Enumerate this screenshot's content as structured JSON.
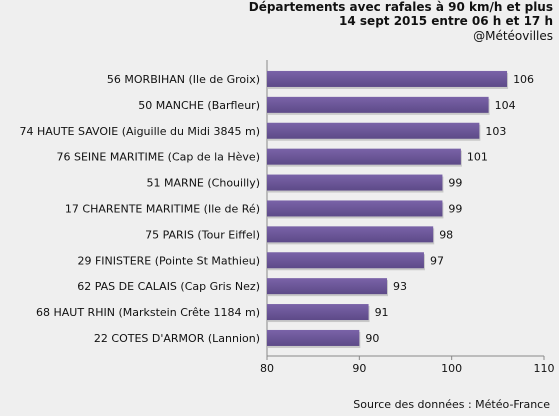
{
  "header": {
    "title_line1": "Départements avec rafales à 90 km/h et plus",
    "title_line2": "14 sept 2015 entre 06 h et 17 h",
    "handle": "@Météovilles"
  },
  "source": "Source des données : Météo-France",
  "colors": {
    "bar": "#7a63a8",
    "bar_dark": "#5d4a88",
    "background": "#efefef"
  },
  "chart_data": {
    "type": "bar",
    "orientation": "horizontal",
    "categories": [
      "56 MORBIHAN (Ile de Groix)",
      "50 MANCHE (Barfleur)",
      "74 HAUTE SAVOIE (Aiguille du Midi 3845 m)",
      "76 SEINE MARITIME (Cap de la Hève)",
      "51 MARNE (Chouilly)",
      "17 CHARENTE MARITIME (Ile de Ré)",
      "75 PARIS (Tour Eiffel)",
      "29 FINISTERE (Pointe St Mathieu)",
      "62 PAS DE CALAIS (Cap Gris Nez)",
      "68 HAUT RHIN (Markstein Crête 1184 m)",
      "22 COTES D'ARMOR (Lannion)"
    ],
    "values": [
      106,
      104,
      103,
      101,
      99,
      99,
      98,
      97,
      93,
      91,
      90
    ],
    "xlim": [
      80,
      110
    ],
    "xticks": [
      80,
      90,
      100,
      110
    ],
    "grid": false
  }
}
